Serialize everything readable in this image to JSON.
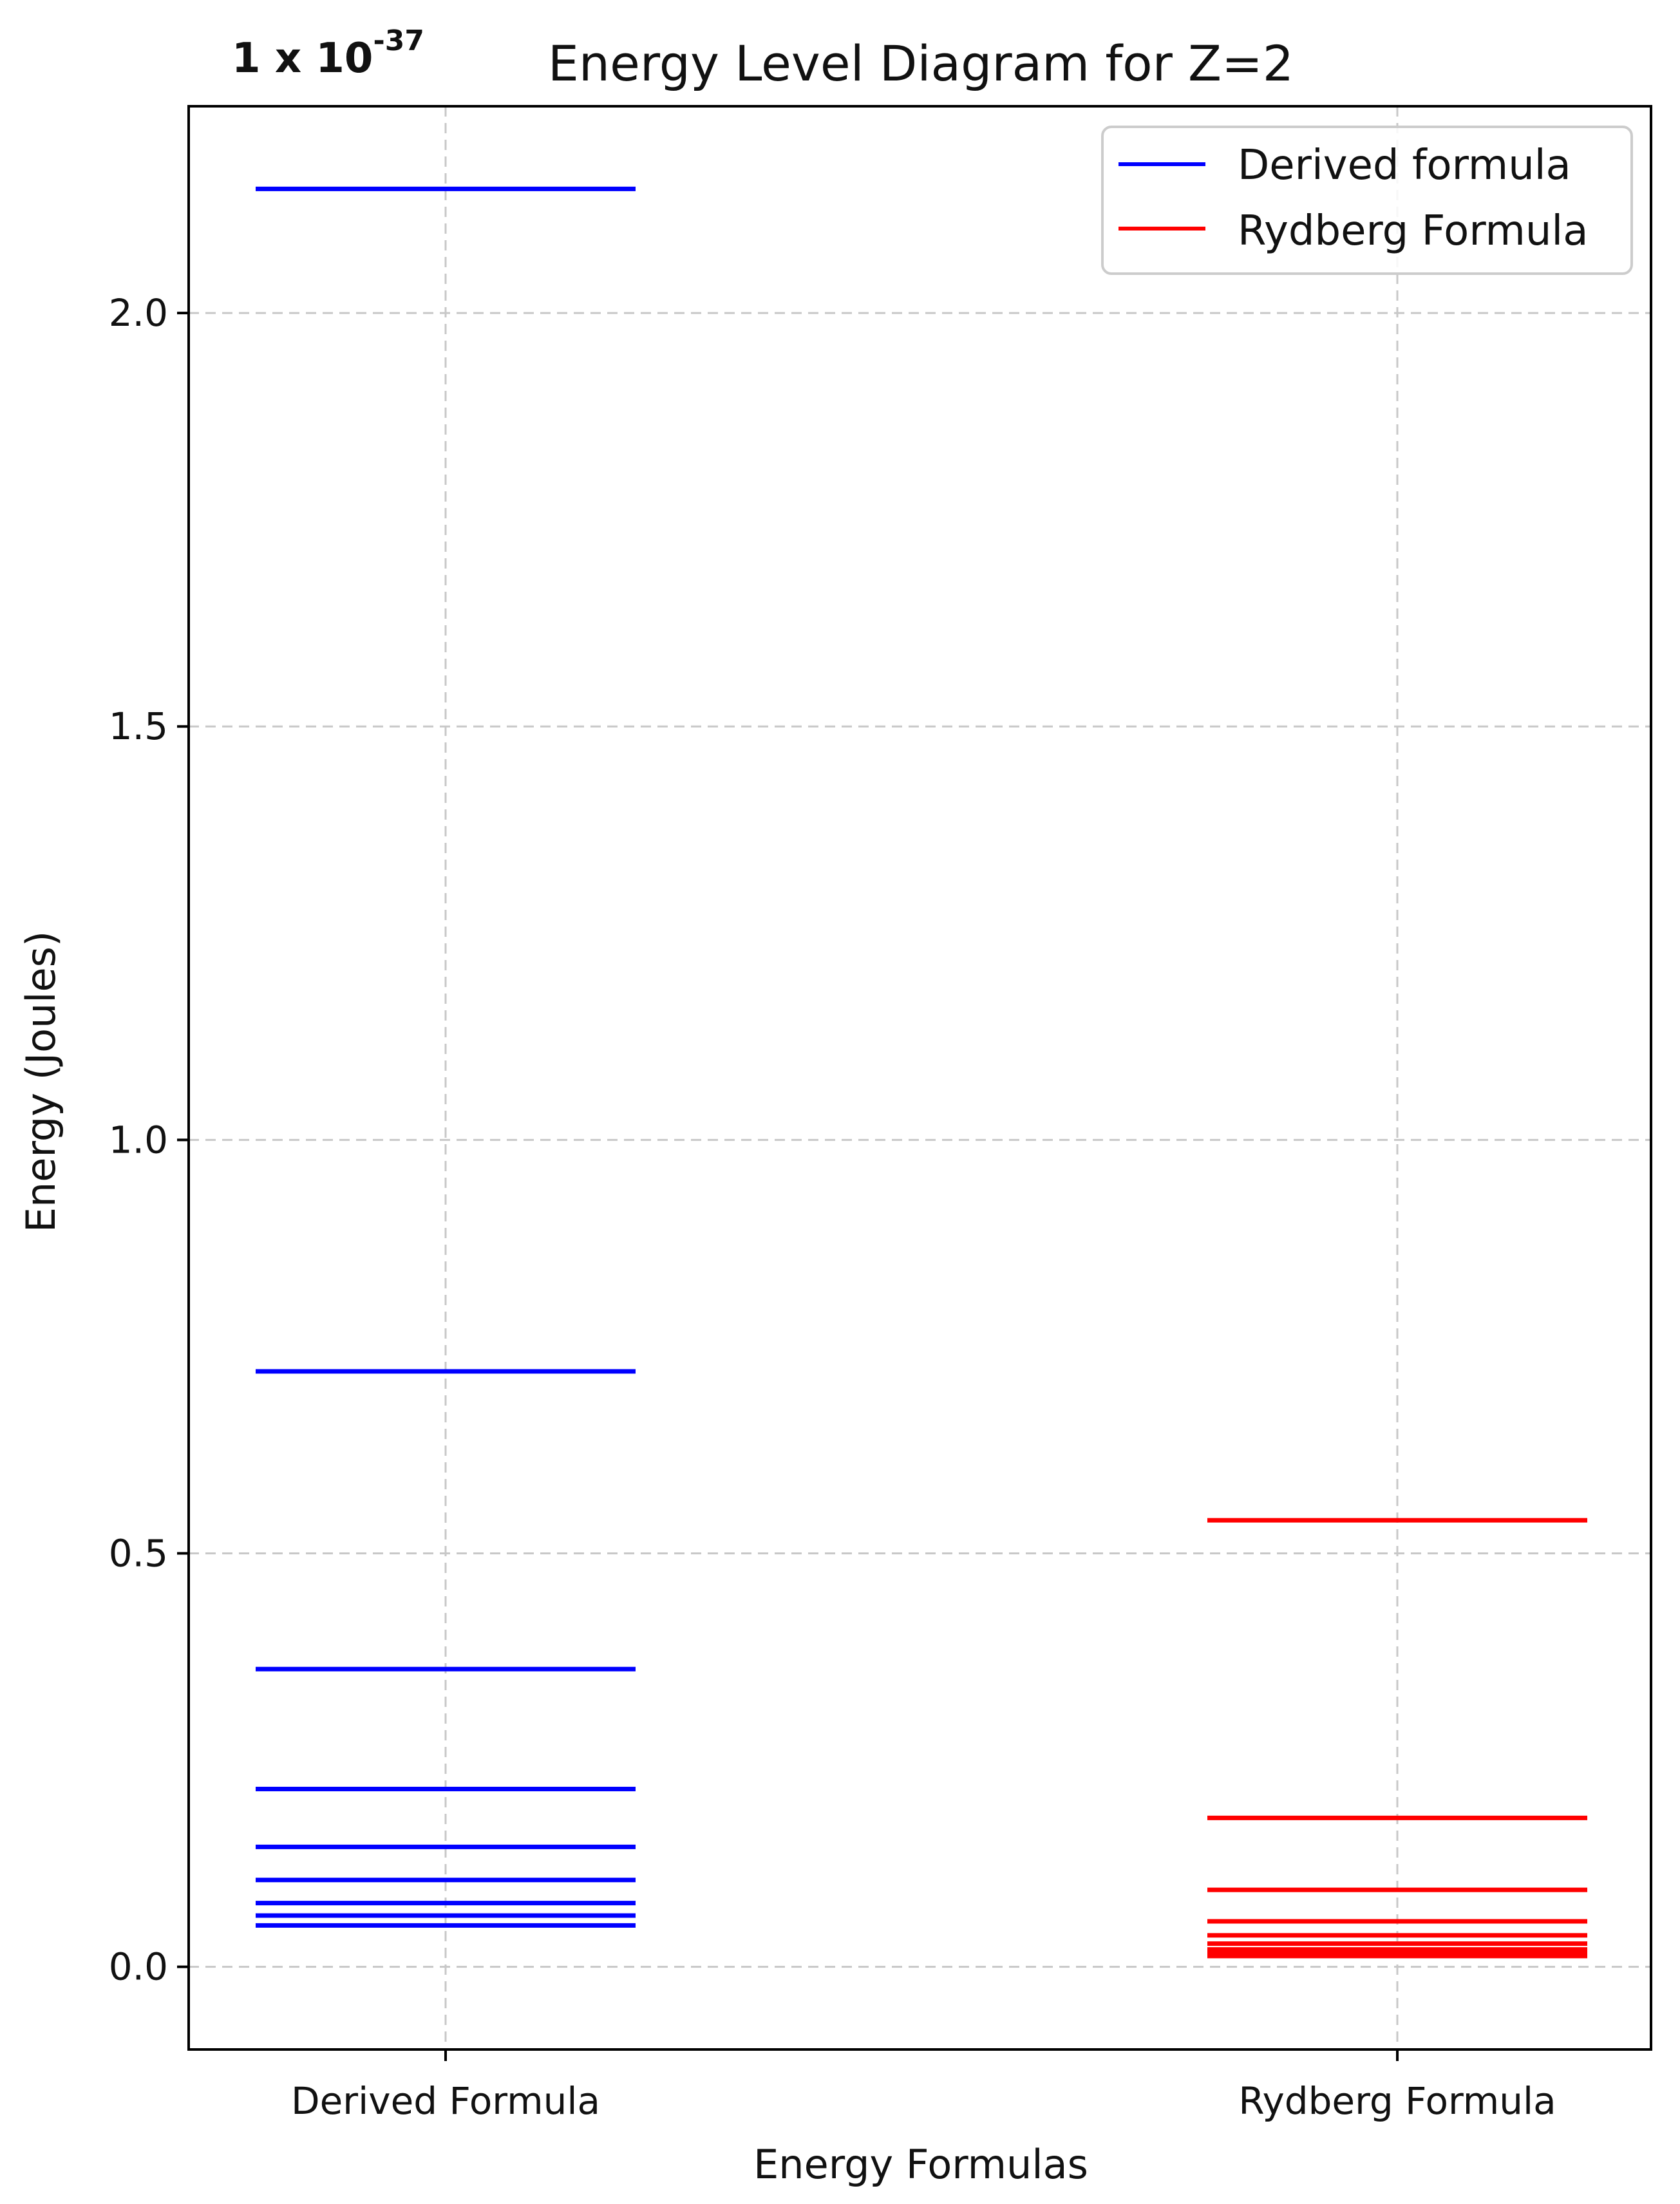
{
  "chart_data": {
    "type": "line",
    "title": "Energy Level Diagram for Z=2",
    "xlabel": "Energy Formulas",
    "ylabel": "Energy (Joules)",
    "scale_prefix": "1 x 10",
    "scale_exponent": "-37",
    "categories": [
      "Derived Formula",
      "Rydberg Formula"
    ],
    "ylim": [
      -0.1,
      2.25
    ],
    "yticks": [
      0.0,
      0.5,
      1.0,
      1.5,
      2.0
    ],
    "ytick_labels": [
      "0.0",
      "0.5",
      "1.0",
      "1.5",
      "2.0"
    ],
    "grid": true,
    "grid_style": "dashed",
    "legend_position": "top-right",
    "series": [
      {
        "name": "Derived formula",
        "category": "Derived Formula",
        "color": "#0000ff",
        "levels": [
          2.15,
          0.72,
          0.36,
          0.215,
          0.145,
          0.105,
          0.077,
          0.062,
          0.05
        ]
      },
      {
        "name": "Rydberg Formula",
        "category": "Rydberg Formula",
        "color": "#ff0000",
        "levels": [
          0.54,
          0.18,
          0.093,
          0.055,
          0.038,
          0.028,
          0.021,
          0.016,
          0.013
        ]
      }
    ]
  }
}
